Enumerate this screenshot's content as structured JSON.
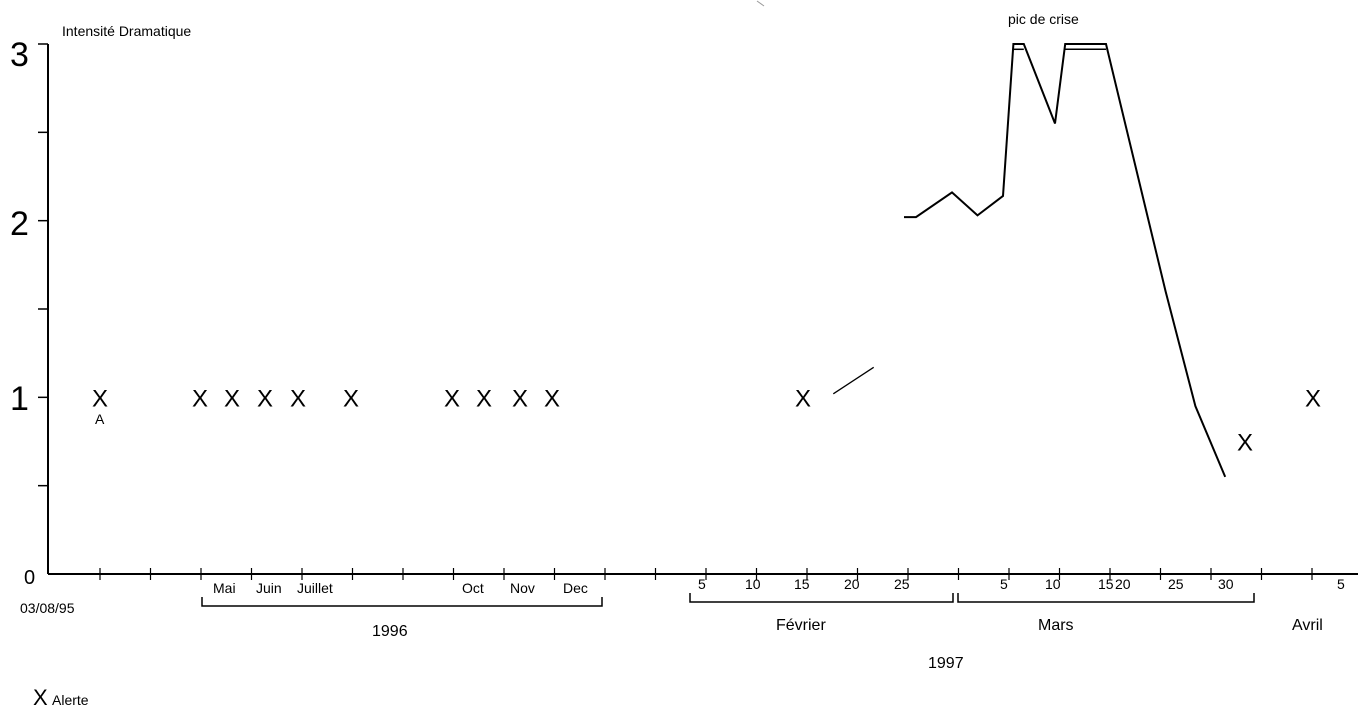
{
  "chart_data": {
    "type": "scatter",
    "title": "",
    "ylabel": "Intensité Dramatique",
    "ylim": [
      0,
      3
    ],
    "y_ticks": [
      "0",
      "1",
      "2",
      "3"
    ],
    "start_date_label": "03/08/95",
    "annotation_peak": "pic de crise",
    "point_letter": "A",
    "legend": {
      "marker": "X",
      "label": "Alerte"
    },
    "months_1996": [
      "Mai",
      "Juin",
      "Juillet",
      "Oct",
      "Nov",
      "Dec"
    ],
    "year_1996": "1996",
    "feb_days": [
      "5",
      "10",
      "15",
      "20",
      "25"
    ],
    "feb_label": "Février",
    "mar_days": [
      "5",
      "10",
      "15",
      "20",
      "25",
      "30"
    ],
    "mar_label": "Mars",
    "apr_days": [
      "5"
    ],
    "apr_label": "Avril",
    "year_1997": "1997",
    "alerts": [
      {
        "date": "1995-08-03",
        "y": 1.0
      },
      {
        "date": "1996-04",
        "y": 1.0
      },
      {
        "date": "1996-05",
        "y": 1.0
      },
      {
        "date": "1996-06",
        "y": 1.0
      },
      {
        "date": "1996-07",
        "y": 1.0
      },
      {
        "date": "1996-08",
        "y": 1.0
      },
      {
        "date": "1996-10",
        "y": 1.0
      },
      {
        "date": "1996-11",
        "y": 1.0
      },
      {
        "date": "1996-11-20",
        "y": 1.0
      },
      {
        "date": "1996-12",
        "y": 1.0
      },
      {
        "date": "1997-02-15",
        "y": 1.0
      },
      {
        "date": "1997-03-29",
        "y": 0.75
      },
      {
        "date": "1997-04-03",
        "y": 1.0
      }
    ],
    "intensity_series": [
      {
        "date": "1997-02-18",
        "y": 1.02
      },
      {
        "date": "1997-02-22",
        "y": 1.17
      },
      {
        "date": "1997-02-25",
        "y": 2.02
      },
      {
        "date": "1997-02-26",
        "y": 2.02
      },
      {
        "date": "1997-03-01",
        "y": 2.16
      },
      {
        "date": "1997-03-03",
        "y": 2.03
      },
      {
        "date": "1997-03-05",
        "y": 2.14
      },
      {
        "date": "1997-03-06",
        "y": 3.0
      },
      {
        "date": "1997-03-07",
        "y": 3.0
      },
      {
        "date": "1997-03-09",
        "y": 2.7
      },
      {
        "date": "1997-03-10",
        "y": 2.55
      },
      {
        "date": "1997-03-11",
        "y": 3.0
      },
      {
        "date": "1997-03-15",
        "y": 3.0
      },
      {
        "date": "1997-03-18",
        "y": 2.3
      },
      {
        "date": "1997-03-21",
        "y": 1.6
      },
      {
        "date": "1997-03-24",
        "y": 0.95
      },
      {
        "date": "1997-03-27",
        "y": 0.55
      }
    ]
  }
}
